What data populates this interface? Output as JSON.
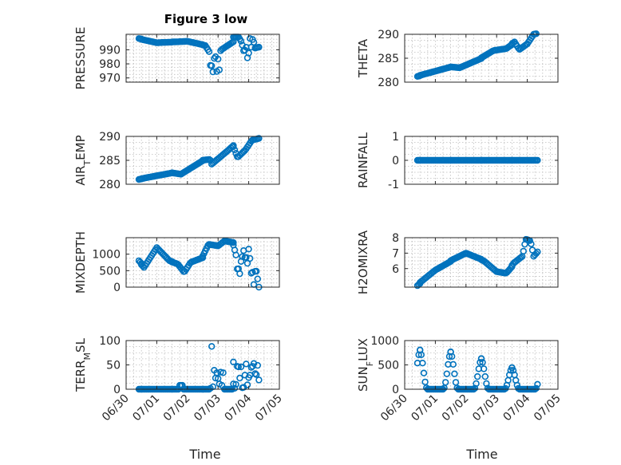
{
  "figure": {
    "title": "Figure 3 low",
    "marker_color": "#0072BD",
    "x_tick_labels": [
      "06/30",
      "07/01",
      "07/02",
      "07/03",
      "07/04",
      "07/05"
    ],
    "xlabel": "Time"
  },
  "chart_data": [
    {
      "type": "scatter",
      "panel": "top-left",
      "title": "Figure 3 low",
      "ylabel": "PRESSURE",
      "xlabel": "",
      "grid": true,
      "xlim": [
        "06/30",
        "07/05"
      ],
      "ylim": [
        967,
        1001
      ],
      "yticks": [
        970,
        980,
        990
      ],
      "x": [],
      "y": []
    },
    {
      "type": "scatter",
      "panel": "top-right",
      "title": "",
      "ylabel": "THETA",
      "xlabel": "",
      "grid": true,
      "xlim": [
        "06/30",
        "07/05"
      ],
      "ylim": [
        280,
        290
      ],
      "yticks": [
        280,
        285,
        290
      ],
      "x": [],
      "y": []
    },
    {
      "type": "scatter",
      "panel": "row2-left",
      "title": "",
      "ylabel": "AIR_TEMP",
      "xlabel": "",
      "grid": true,
      "xlim": [
        "06/30",
        "07/05"
      ],
      "ylim": [
        280,
        290
      ],
      "yticks": [
        280,
        285,
        290
      ],
      "x": [],
      "y": []
    },
    {
      "type": "scatter",
      "panel": "row2-right",
      "title": "",
      "ylabel": "RAINFALL",
      "xlabel": "",
      "grid": true,
      "xlim": [
        "06/30",
        "07/05"
      ],
      "ylim": [
        -1,
        1
      ],
      "yticks": [
        -1,
        0,
        1
      ],
      "x": [],
      "y": []
    },
    {
      "type": "scatter",
      "panel": "row3-left",
      "title": "",
      "ylabel": "MIXDEPTH",
      "xlabel": "",
      "grid": true,
      "xlim": [
        "06/30",
        "07/05"
      ],
      "ylim": [
        0,
        1500
      ],
      "yticks": [
        0,
        500,
        1000
      ],
      "x": [],
      "y": []
    },
    {
      "type": "scatter",
      "panel": "row3-right",
      "title": "",
      "ylabel": "H2OMIXRA",
      "xlabel": "",
      "grid": true,
      "xlim": [
        "06/30",
        "07/05"
      ],
      "ylim": [
        4.8,
        8
      ],
      "yticks": [
        6,
        7,
        8
      ],
      "x": [],
      "y": []
    },
    {
      "type": "scatter",
      "panel": "bottom-left",
      "title": "",
      "ylabel": "TERR_MSL",
      "xlabel": "Time",
      "grid": true,
      "xlim": [
        "06/30",
        "07/05"
      ],
      "ylim": [
        0,
        100
      ],
      "yticks": [
        0,
        50,
        100
      ],
      "x": [],
      "y": []
    },
    {
      "type": "scatter",
      "panel": "bottom-right",
      "title": "",
      "ylabel": "SUN_FLUX",
      "xlabel": "Time",
      "grid": true,
      "xlim": [
        "06/30",
        "07/05"
      ],
      "ylim": [
        0,
        1000
      ],
      "yticks": [
        0,
        500,
        1000
      ],
      "x": [],
      "y": []
    }
  ]
}
